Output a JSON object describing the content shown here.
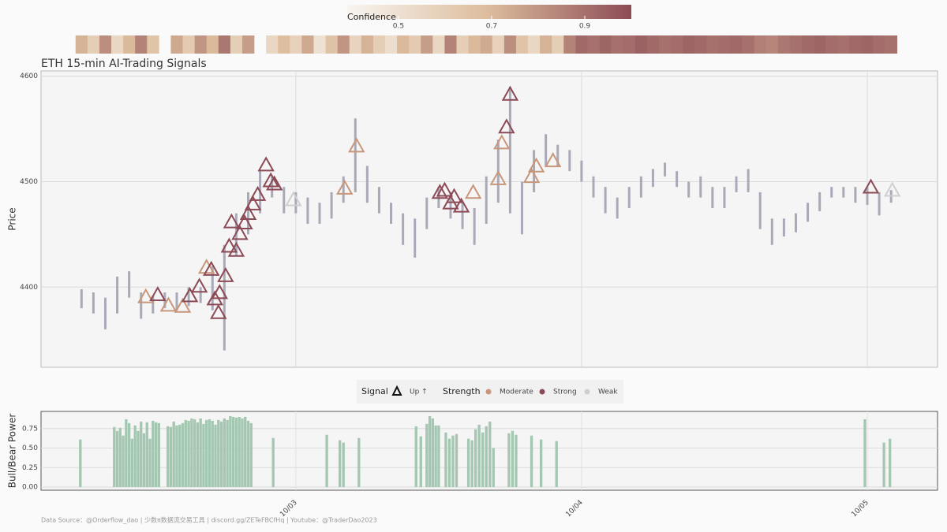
{
  "chart_data": [
    {
      "type": "candlestick",
      "title": "ETH 15-min AI-Trading Signals",
      "ylabel": "Price",
      "x": [
        6,
        7,
        8,
        9,
        10,
        11,
        12,
        13,
        14,
        15,
        16,
        17,
        18,
        19,
        20,
        21,
        22,
        23,
        24,
        25,
        26,
        27,
        28,
        29,
        30,
        31,
        32,
        33,
        34,
        35,
        36,
        37,
        38,
        39,
        40,
        41,
        42,
        43,
        44,
        45,
        46,
        47,
        48,
        49,
        50,
        51,
        52,
        53,
        54,
        55,
        56,
        57,
        58,
        59,
        60,
        61,
        62,
        63,
        64,
        65,
        66,
        67,
        68,
        69,
        70,
        71,
        72,
        73,
        74
      ],
      "low": [
        4380,
        4375,
        4360,
        4375,
        4390,
        4370,
        4375,
        4380,
        4378,
        4382,
        4385,
        4378,
        4340,
        4430,
        4450,
        4470,
        4485,
        4470,
        4470,
        4460,
        4460,
        4465,
        4480,
        4490,
        4480,
        4470,
        4460,
        4440,
        4428,
        4455,
        4475,
        4465,
        4455,
        4440,
        4460,
        4480,
        4470,
        4450,
        4490,
        4515,
        4515,
        4510,
        4500,
        4485,
        4470,
        4465,
        4475,
        4485,
        4495,
        4505,
        4495,
        4485,
        4485,
        4475,
        4475,
        4490,
        4490,
        4455,
        4440,
        4448,
        4452,
        4462,
        4472,
        4485,
        4485,
        4480,
        4478,
        4468,
        4480
      ],
      "high": [
        4398,
        4395,
        4390,
        4410,
        4415,
        4395,
        4392,
        4395,
        4395,
        4400,
        4400,
        4420,
        4440,
        4470,
        4490,
        4510,
        4505,
        4495,
        4490,
        4485,
        4480,
        4490,
        4505,
        4560,
        4515,
        4495,
        4480,
        4470,
        4465,
        4485,
        4495,
        4490,
        4480,
        4475,
        4505,
        4540,
        4590,
        4500,
        4530,
        4545,
        4535,
        4530,
        4520,
        4505,
        4495,
        4485,
        4495,
        4505,
        4512,
        4518,
        4510,
        4500,
        4505,
        4495,
        4495,
        4505,
        4512,
        4490,
        4465,
        4465,
        4470,
        4480,
        4490,
        4495,
        4495,
        4495,
        4495,
        4490,
        4492
      ],
      "color": "#a9a9b8",
      "xlim": [
        2.6,
        77.9
      ],
      "xticks": [
        {
          "value": 24,
          "label": "10/03"
        },
        {
          "value": 48,
          "label": "10/04"
        },
        {
          "value": 72,
          "label": "10/05"
        }
      ],
      "ylim": [
        4324,
        4605
      ],
      "yticks": [
        4400,
        4500,
        4600
      ],
      "grid": true,
      "signals": {
        "name": "Up ↑",
        "x": [
          11.4,
          12.4,
          13.3,
          14.5,
          15.1,
          15.9,
          16.5,
          16.9,
          17.2,
          17.6,
          17.5,
          18.1,
          18.4,
          18.6,
          19.0,
          19.3,
          19.7,
          20.0,
          20.4,
          20.8,
          21.5,
          21.9,
          22.2,
          23.8,
          28.1,
          29.1,
          36.1,
          36.5,
          37.0,
          37.3,
          37.9,
          38.9,
          41.0,
          41.3,
          41.7,
          42.0,
          43.8,
          44.2,
          45.6,
          72.3,
          74.1
        ],
        "y": [
          4390,
          4392,
          4382,
          4381,
          4391,
          4400,
          4418,
          4416,
          4388,
          4394,
          4375,
          4410,
          4438,
          4461,
          4434,
          4450,
          4460,
          4469,
          4478,
          4487,
          4515,
          4500,
          4497,
          4482,
          4493,
          4533,
          4489,
          4491,
          4479,
          4485,
          4476,
          4489,
          4502,
          4536,
          4551,
          4582,
          4504,
          4514,
          4519,
          4494,
          4491
        ],
        "strength": [
          0,
          1,
          0,
          0,
          1,
          1,
          0,
          1,
          1,
          1,
          1,
          1,
          1,
          1,
          1,
          1,
          1,
          1,
          1,
          1,
          1,
          1,
          1,
          2,
          0,
          0,
          1,
          1,
          1,
          1,
          1,
          0,
          0,
          0,
          1,
          1,
          0,
          0,
          0,
          1,
          2
        ]
      },
      "legend": {
        "signal_title": "Signal",
        "strength_title": "Strength",
        "strengths": [
          {
            "name": "Moderate",
            "color": "#c8967a"
          },
          {
            "name": "Strong",
            "color": "#8b4a55"
          },
          {
            "name": "Weak",
            "color": "#cfcfcf"
          }
        ]
      },
      "confidence": {
        "title": "Confidence",
        "clim": [
          0.39,
          1.0
        ],
        "ticks": [
          0.5,
          0.7,
          0.9
        ],
        "colors": [
          "#f8f5f0",
          "#dcbc9c",
          "#8c4b55"
        ],
        "values": [
          0.72,
          0.6,
          0.82,
          0.55,
          0.7,
          0.85,
          0.65,
          null,
          0.75,
          0.62,
          0.8,
          0.7,
          0.88,
          0.6,
          0.78,
          null,
          0.55,
          0.68,
          0.58,
          0.75,
          0.5,
          0.66,
          0.8,
          0.57,
          0.72,
          0.6,
          0.52,
          0.7,
          0.62,
          0.78,
          0.55,
          0.85,
          0.6,
          0.7,
          0.74,
          0.58,
          0.82,
          0.65,
          0.55,
          0.72,
          0.6,
          0.85,
          0.92,
          0.9,
          0.93,
          0.9,
          0.91,
          0.94,
          0.92,
          0.9,
          0.91,
          0.93,
          0.92,
          0.9,
          0.91,
          0.92,
          0.9,
          0.86,
          0.84,
          0.88,
          0.9,
          0.92,
          0.93,
          0.91,
          0.9,
          0.92,
          0.93,
          0.91,
          0.9
        ]
      }
    },
    {
      "type": "bar",
      "ylabel": "Bull/Bear Power",
      "color": "#a3c7b0",
      "x": [
        5.9,
        8.75,
        9,
        9.25,
        9.5,
        9.75,
        10,
        10.25,
        10.5,
        10.75,
        11,
        11.25,
        11.5,
        11.75,
        12,
        12.25,
        12.5,
        13.25,
        13.5,
        13.75,
        14,
        14.25,
        14.5,
        14.75,
        15,
        15.25,
        15.5,
        15.75,
        16,
        16.25,
        16.5,
        16.75,
        17,
        17.25,
        17.5,
        17.75,
        18,
        18.25,
        18.5,
        18.75,
        19,
        19.25,
        19.5,
        19.75,
        20,
        20.25,
        22.1,
        26.6,
        27.7,
        28.0,
        29.3,
        34.1,
        34.5,
        35.0,
        35.25,
        35.5,
        35.75,
        36.0,
        36.6,
        36.9,
        37.2,
        37.5,
        38.5,
        38.8,
        39.1,
        39.4,
        39.7,
        40.0,
        40.3,
        40.6,
        41.9,
        42.2,
        42.5,
        43.8,
        44.6,
        45.9,
        71.8,
        73.4,
        73.9
      ],
      "values": [
        0.61,
        0.77,
        0.72,
        0.76,
        0.66,
        0.87,
        0.82,
        0.62,
        0.79,
        0.72,
        0.84,
        0.69,
        0.83,
        0.62,
        0.85,
        0.83,
        0.82,
        0.78,
        0.77,
        0.84,
        0.79,
        0.8,
        0.82,
        0.86,
        0.85,
        0.88,
        0.87,
        0.83,
        0.88,
        0.81,
        0.86,
        0.87,
        0.85,
        0.8,
        0.86,
        0.84,
        0.88,
        0.86,
        0.91,
        0.9,
        0.89,
        0.9,
        0.88,
        0.9,
        0.85,
        0.82,
        0.63,
        0.67,
        0.6,
        0.57,
        0.63,
        0.78,
        0.65,
        0.81,
        0.91,
        0.88,
        0.79,
        0.79,
        0.7,
        0.62,
        0.66,
        0.68,
        0.62,
        0.6,
        0.74,
        0.8,
        0.7,
        0.78,
        0.84,
        0.5,
        0.69,
        0.72,
        0.67,
        0.66,
        0.61,
        0.59,
        0.87,
        0.57,
        0.62
      ],
      "ylim": [
        -0.04,
        0.97
      ],
      "yticks": [
        {
          "value": 0,
          "label": "0.00"
        },
        {
          "value": 0.25,
          "label": "0.25"
        },
        {
          "value": 0.5,
          "label": "0.50"
        },
        {
          "value": 0.75,
          "label": "0.75"
        }
      ]
    }
  ],
  "footer": "Data Source：@Orderflow_dao | 少数π数据流交易工具 | discord.gg/ZETeFBCfHq | Youtube：@TraderDao2023"
}
